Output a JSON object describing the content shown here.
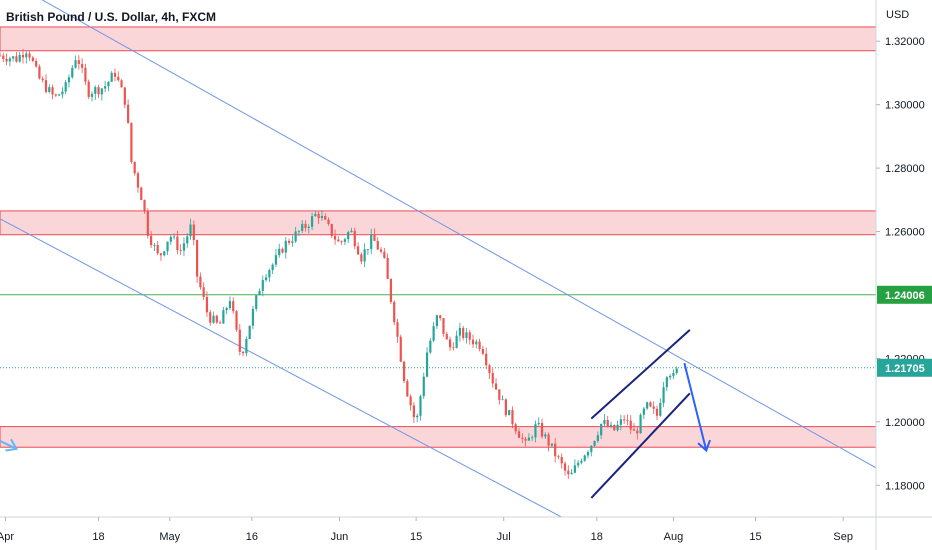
{
  "header": {
    "title": "British Pound / U.S. Dollar, 4h, FXCM",
    "currency": "USD"
  },
  "chart_data": {
    "type": "candlestick",
    "title": "British Pound / U.S. Dollar, 4h, FXCM",
    "y_unit": "USD",
    "ylim": [
      1.17,
      1.333
    ],
    "y_ticks": [
      "1.32000",
      "1.30000",
      "1.28000",
      "1.26000",
      "1.22000",
      "1.20000",
      "1.18000"
    ],
    "x_ticks": [
      "Apr",
      "18",
      "May",
      "16",
      "Jun",
      "15",
      "Jul",
      "18",
      "Aug",
      "15",
      "Sep"
    ],
    "x_tick_positions_days": [
      1,
      18,
      31,
      46,
      62,
      76,
      92,
      109,
      123,
      138,
      154
    ],
    "x_range_days": [
      0,
      160
    ],
    "price_labels": [
      {
        "value": 1.24006,
        "text": "1.24006",
        "color": "#26a141"
      },
      {
        "value": 1.21705,
        "text": "1.21705",
        "color": "#26a69a"
      }
    ],
    "horizontal_line": {
      "value": 1.24006,
      "color": "#4caf50"
    },
    "current_price_line": {
      "value": 1.21705,
      "color": "#26a69a"
    },
    "resistance_zones": [
      {
        "low": 1.317,
        "high": 1.3245
      },
      {
        "low": 1.259,
        "high": 1.2665
      },
      {
        "low": 1.192,
        "high": 1.1985
      }
    ],
    "descending_channel": {
      "upper": [
        {
          "day": 0,
          "price": 1.3405
        },
        {
          "day": 160,
          "price": 1.1855
        }
      ],
      "lower": [
        {
          "day": 0,
          "price": 1.264
        },
        {
          "day": 108,
          "price": 1.165
        }
      ]
    },
    "rising_channel": {
      "upper": [
        {
          "day": 108,
          "price": 1.201
        },
        {
          "day": 126,
          "price": 1.229
        }
      ],
      "lower": [
        {
          "day": 108,
          "price": 1.176
        },
        {
          "day": 126,
          "price": 1.209
        }
      ]
    },
    "arrows": [
      {
        "from_day": 125,
        "from_price": 1.2185,
        "to_day": 129,
        "to_price": 1.191
      },
      {
        "from_day": 0,
        "from_price": 1.194,
        "to_day": 3,
        "to_price": 1.1915
      }
    ],
    "price_path": [
      {
        "day": 0,
        "price": 1.3155
      },
      {
        "day": 3,
        "price": 1.3145
      },
      {
        "day": 5,
        "price": 1.3178
      },
      {
        "day": 7,
        "price": 1.3085
      },
      {
        "day": 10,
        "price": 1.302
      },
      {
        "day": 12,
        "price": 1.3055
      },
      {
        "day": 14,
        "price": 1.316
      },
      {
        "day": 16,
        "price": 1.304
      },
      {
        "day": 19,
        "price": 1.3055
      },
      {
        "day": 21,
        "price": 1.31
      },
      {
        "day": 23,
        "price": 1.3005
      },
      {
        "day": 24,
        "price": 1.282
      },
      {
        "day": 26,
        "price": 1.27
      },
      {
        "day": 27,
        "price": 1.26
      },
      {
        "day": 29,
        "price": 1.2515
      },
      {
        "day": 31,
        "price": 1.259
      },
      {
        "day": 33,
        "price": 1.254
      },
      {
        "day": 35,
        "price": 1.262
      },
      {
        "day": 36,
        "price": 1.246
      },
      {
        "day": 38,
        "price": 1.2335
      },
      {
        "day": 40,
        "price": 1.23
      },
      {
        "day": 42,
        "price": 1.239
      },
      {
        "day": 44,
        "price": 1.2205
      },
      {
        "day": 46,
        "price": 1.2335
      },
      {
        "day": 48,
        "price": 1.246
      },
      {
        "day": 50,
        "price": 1.25
      },
      {
        "day": 52,
        "price": 1.256
      },
      {
        "day": 54,
        "price": 1.259
      },
      {
        "day": 56,
        "price": 1.262
      },
      {
        "day": 58,
        "price": 1.266
      },
      {
        "day": 60,
        "price": 1.261
      },
      {
        "day": 62,
        "price": 1.256
      },
      {
        "day": 64,
        "price": 1.2605
      },
      {
        "day": 66,
        "price": 1.252
      },
      {
        "day": 68,
        "price": 1.258
      },
      {
        "day": 70,
        "price": 1.252
      },
      {
        "day": 72,
        "price": 1.233
      },
      {
        "day": 74,
        "price": 1.212
      },
      {
        "day": 76,
        "price": 1.199
      },
      {
        "day": 78,
        "price": 1.222
      },
      {
        "day": 80,
        "price": 1.234
      },
      {
        "day": 82,
        "price": 1.223
      },
      {
        "day": 84,
        "price": 1.228
      },
      {
        "day": 86,
        "price": 1.226
      },
      {
        "day": 88,
        "price": 1.224
      },
      {
        "day": 90,
        "price": 1.213
      },
      {
        "day": 92,
        "price": 1.205
      },
      {
        "day": 94,
        "price": 1.199
      },
      {
        "day": 96,
        "price": 1.1925
      },
      {
        "day": 98,
        "price": 1.199
      },
      {
        "day": 100,
        "price": 1.194
      },
      {
        "day": 102,
        "price": 1.188
      },
      {
        "day": 104,
        "price": 1.182
      },
      {
        "day": 106,
        "price": 1.1885
      },
      {
        "day": 108,
        "price": 1.193
      },
      {
        "day": 110,
        "price": 1.2
      },
      {
        "day": 112,
        "price": 1.197
      },
      {
        "day": 114,
        "price": 1.201
      },
      {
        "day": 116,
        "price": 1.196
      },
      {
        "day": 118,
        "price": 1.205
      },
      {
        "day": 120,
        "price": 1.202
      },
      {
        "day": 121,
        "price": 1.211
      },
      {
        "day": 122,
        "price": 1.217
      },
      {
        "day": 123,
        "price": 1.214
      },
      {
        "day": 124,
        "price": 1.2171
      }
    ]
  }
}
